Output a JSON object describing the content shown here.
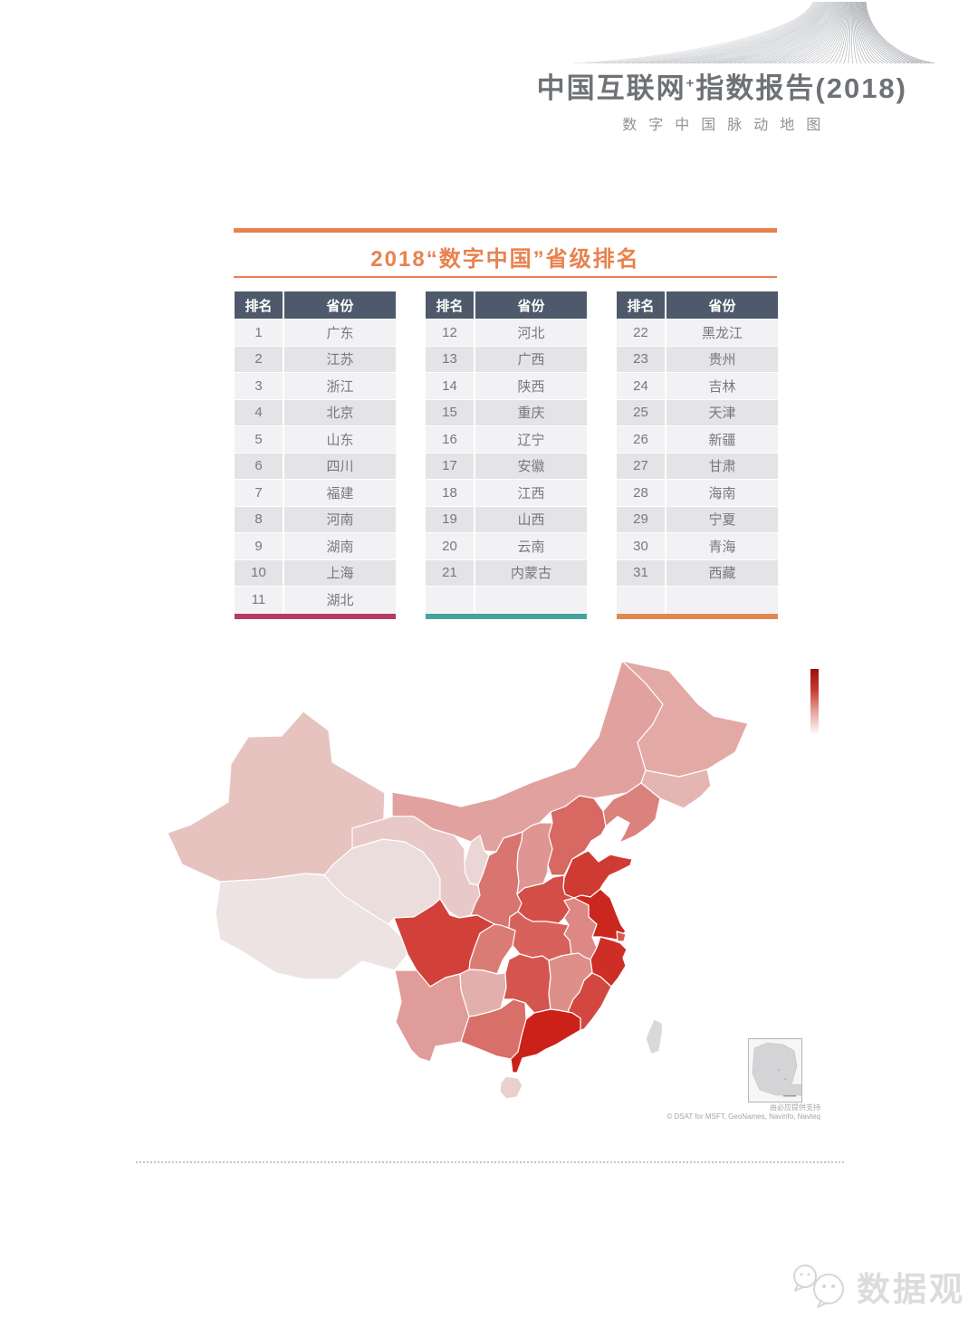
{
  "page": {
    "title_main": "中国互联网",
    "title_sup": "+",
    "title_rest": "指数报告",
    "title_year": "(2018)",
    "subtitle": "数字中国脉动地图"
  },
  "section": {
    "title": "2018“数字中国”省级排名",
    "accent_color": "#e8824f"
  },
  "ranking": {
    "headers": [
      "排名",
      "省份"
    ],
    "tables": [
      {
        "accent_color": "#b53b63",
        "rows": [
          {
            "rank": "1",
            "province": "广东"
          },
          {
            "rank": "2",
            "province": "江苏"
          },
          {
            "rank": "3",
            "province": "浙江"
          },
          {
            "rank": "4",
            "province": "北京"
          },
          {
            "rank": "5",
            "province": "山东"
          },
          {
            "rank": "6",
            "province": "四川"
          },
          {
            "rank": "7",
            "province": "福建"
          },
          {
            "rank": "8",
            "province": "河南"
          },
          {
            "rank": "9",
            "province": "湖南"
          },
          {
            "rank": "10",
            "province": "上海"
          },
          {
            "rank": "11",
            "province": "湖北"
          }
        ]
      },
      {
        "accent_color": "#46a29a",
        "rows": [
          {
            "rank": "12",
            "province": "河北"
          },
          {
            "rank": "13",
            "province": "广西"
          },
          {
            "rank": "14",
            "province": "陕西"
          },
          {
            "rank": "15",
            "province": "重庆"
          },
          {
            "rank": "16",
            "province": "辽宁"
          },
          {
            "rank": "17",
            "province": "安徽"
          },
          {
            "rank": "18",
            "province": "江西"
          },
          {
            "rank": "19",
            "province": "山西"
          },
          {
            "rank": "20",
            "province": "云南"
          },
          {
            "rank": "21",
            "province": "内蒙古"
          }
        ]
      },
      {
        "accent_color": "#e28950",
        "rows": [
          {
            "rank": "22",
            "province": "黑龙江"
          },
          {
            "rank": "23",
            "province": "贵州"
          },
          {
            "rank": "24",
            "province": "吉林"
          },
          {
            "rank": "25",
            "province": "天津"
          },
          {
            "rank": "26",
            "province": "新疆"
          },
          {
            "rank": "27",
            "province": "甘肃"
          },
          {
            "rank": "28",
            "province": "海南"
          },
          {
            "rank": "29",
            "province": "宁夏"
          },
          {
            "rank": "30",
            "province": "青海"
          },
          {
            "rank": "31",
            "province": "西藏"
          }
        ]
      }
    ]
  },
  "map": {
    "legend": {
      "top_color": "#9b1010",
      "bottom_color": "#ffffff"
    },
    "inset_note": "由必应提供支持",
    "attribution": "© DSAT for MSFT, GeoNames, Navinfo, Navteq"
  },
  "chart_data": {
    "type": "choropleth",
    "title": "2018“数字中国”省级排名",
    "region": "China provinces",
    "value_meaning": "rank (1 = highest digital index, darkest red)",
    "color_scale": {
      "high": "#cb2118",
      "low": "#ece3e2"
    },
    "provinces": [
      {
        "name": "广东",
        "key": "guangdong",
        "rank": 1
      },
      {
        "name": "江苏",
        "key": "jiangsu",
        "rank": 2
      },
      {
        "name": "浙江",
        "key": "zhejiang",
        "rank": 3
      },
      {
        "name": "北京",
        "key": "beijing",
        "rank": 4
      },
      {
        "name": "山东",
        "key": "shandong",
        "rank": 5
      },
      {
        "name": "四川",
        "key": "sichuan",
        "rank": 6
      },
      {
        "name": "福建",
        "key": "fujian",
        "rank": 7
      },
      {
        "name": "河南",
        "key": "henan",
        "rank": 8
      },
      {
        "name": "湖南",
        "key": "hunan",
        "rank": 9
      },
      {
        "name": "上海",
        "key": "shanghai",
        "rank": 10
      },
      {
        "name": "湖北",
        "key": "hubei",
        "rank": 11
      },
      {
        "name": "河北",
        "key": "hebei",
        "rank": 12
      },
      {
        "name": "广西",
        "key": "guangxi",
        "rank": 13
      },
      {
        "name": "陕西",
        "key": "shaanxi",
        "rank": 14
      },
      {
        "name": "重庆",
        "key": "chongqing",
        "rank": 15
      },
      {
        "name": "辽宁",
        "key": "liaoning",
        "rank": 16
      },
      {
        "name": "安徽",
        "key": "anhui",
        "rank": 17
      },
      {
        "name": "江西",
        "key": "jiangxi",
        "rank": 18
      },
      {
        "name": "山西",
        "key": "shanxi",
        "rank": 19
      },
      {
        "name": "云南",
        "key": "yunnan",
        "rank": 20
      },
      {
        "name": "内蒙古",
        "key": "inner_mongolia",
        "rank": 21
      },
      {
        "name": "黑龙江",
        "key": "heilongjiang",
        "rank": 22
      },
      {
        "name": "贵州",
        "key": "guizhou",
        "rank": 23
      },
      {
        "name": "吉林",
        "key": "jilin",
        "rank": 24
      },
      {
        "name": "天津",
        "key": "tianjin",
        "rank": 25
      },
      {
        "name": "新疆",
        "key": "xinjiang",
        "rank": 26
      },
      {
        "name": "甘肃",
        "key": "gansu",
        "rank": 27
      },
      {
        "name": "海南",
        "key": "hainan",
        "rank": 28
      },
      {
        "name": "宁夏",
        "key": "ningxia",
        "rank": 29
      },
      {
        "name": "青海",
        "key": "qinghai",
        "rank": 30
      },
      {
        "name": "西藏",
        "key": "tibet",
        "rank": 31
      }
    ],
    "other_regions": [
      {
        "name": "台湾",
        "key": "taiwan",
        "color": "#d9d9d9"
      }
    ]
  },
  "watermark": {
    "text": "数据观",
    "icon": "chat-bubbles-icon"
  }
}
